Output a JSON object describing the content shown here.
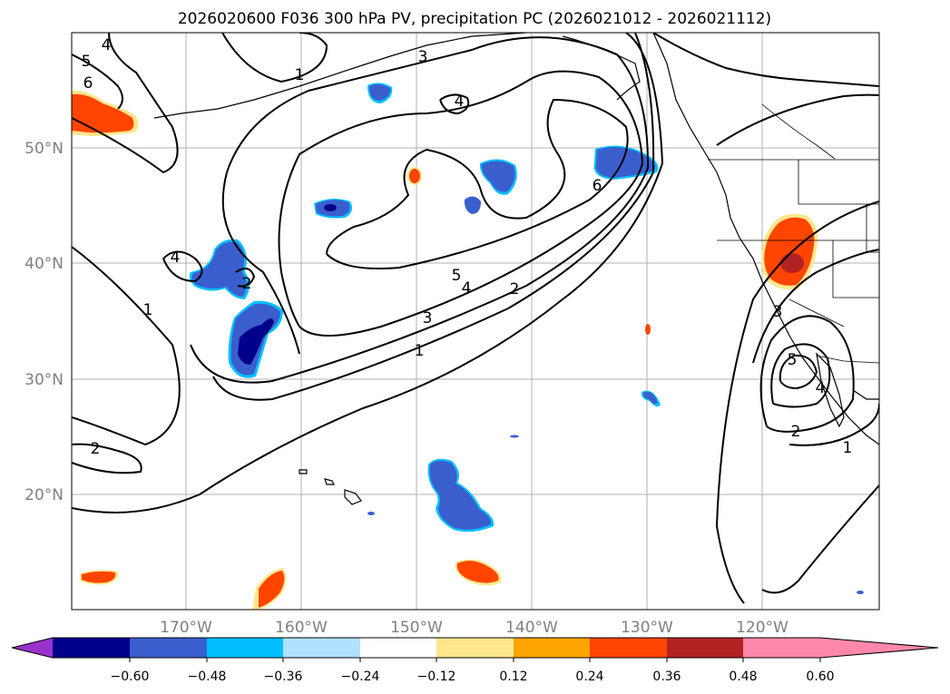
{
  "title": "2026020600 F036 300 hPa PV, precipitation PC (2026021012 - 2026021112)",
  "map": {
    "lat_labels": [
      "50°N",
      "40°N",
      "30°N",
      "20°N"
    ],
    "lon_labels": [
      "170°W",
      "160°W",
      "150°W",
      "140°W",
      "130°W",
      "120°W"
    ],
    "contour_labels": [
      "4",
      "5",
      "6",
      "1",
      "3",
      "4",
      "6",
      "4",
      "1",
      "2",
      "5",
      "4",
      "2",
      "3",
      "1",
      "2",
      "3",
      "5",
      "4",
      "2",
      "1"
    ]
  },
  "colorbar": {
    "tick_labels": [
      "−0.60",
      "−0.48",
      "−0.36",
      "−0.24",
      "−0.12",
      "0.12",
      "0.24",
      "0.36",
      "0.48",
      "0.60"
    ],
    "colors": [
      "#9932cc",
      "#00008b",
      "#3a5fcd",
      "#00bfff",
      "#b0e2ff",
      "#ffffff",
      "#ffe68c",
      "#ffa500",
      "#ff4500",
      "#b22222",
      "#ff88aa"
    ]
  },
  "colors": {
    "pos_light": "#ffe68c",
    "pos_mid": "#ffa500",
    "pos_strong": "#ff4500",
    "pos_peak": "#b22222",
    "neg_light": "#00bfff",
    "neg_mid": "#3a5fcd",
    "neg_peak": "#00008b"
  }
}
